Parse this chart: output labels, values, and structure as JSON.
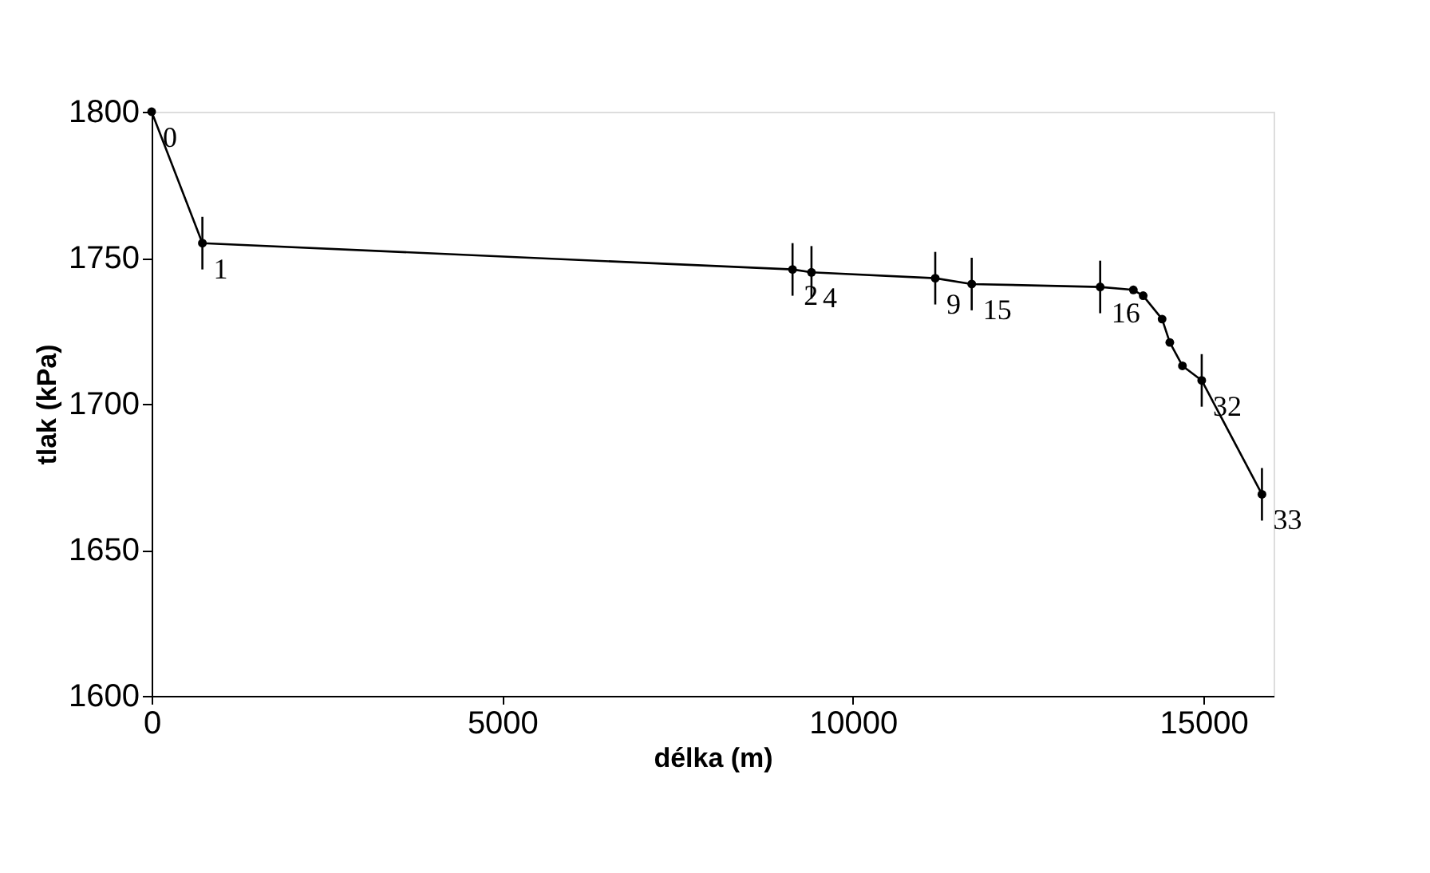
{
  "chart_data": {
    "type": "line",
    "xlabel": "délka (m)",
    "ylabel": "tlak (kPa)",
    "x": [
      0,
      724,
      9140,
      9410,
      11175,
      11695,
      13527,
      14000,
      14140,
      14410,
      14520,
      14700,
      14975,
      15834
    ],
    "series": [
      {
        "color": "#000000",
        "values": [
          1800,
          1755,
          1746,
          1745,
          1743,
          1741,
          1740,
          1739,
          1737,
          1729,
          1721,
          1713,
          1708,
          1669
        ],
        "errors": [
          null,
          9,
          9,
          9,
          9,
          9,
          9,
          null,
          null,
          null,
          null,
          null,
          9,
          9
        ]
      }
    ],
    "xlim": [
      0,
      16000
    ],
    "xticks": [
      0,
      5000,
      10000,
      15000
    ],
    "ylim": [
      1600,
      1800
    ],
    "yticks": [
      1600,
      1650,
      1700,
      1750,
      1800
    ],
    "grid": false,
    "marker": "circle",
    "line_style": "solid",
    "annotations": [
      {
        "text": "0",
        "x": 0,
        "y": 1800
      },
      {
        "text": "1",
        "x": 724,
        "y": 1755
      },
      {
        "text": "2",
        "x": 9140,
        "y": 1746
      },
      {
        "text": "4",
        "x": 9410,
        "y": 1745
      },
      {
        "text": "9",
        "x": 11175,
        "y": 1743
      },
      {
        "text": "15",
        "x": 11695,
        "y": 1741
      },
      {
        "text": "16",
        "x": 13527,
        "y": 1740
      },
      {
        "text": "32",
        "x": 14975,
        "y": 1708
      },
      {
        "text": "33",
        "x": 15834,
        "y": 1669
      }
    ]
  }
}
